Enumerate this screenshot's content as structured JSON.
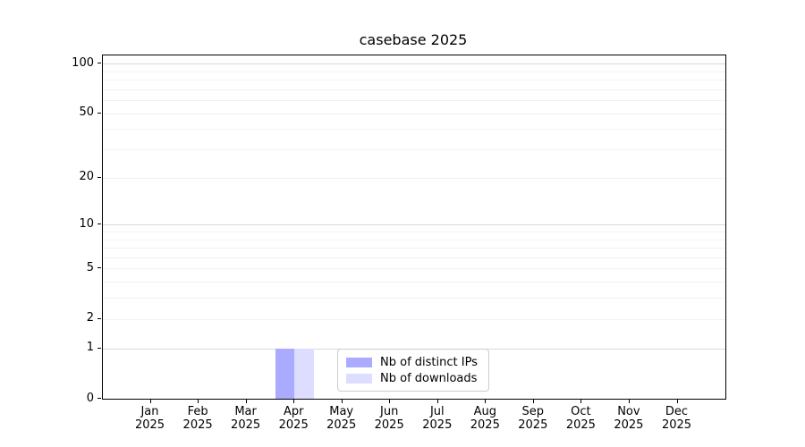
{
  "chart_data": {
    "type": "bar",
    "title": "casebase 2025",
    "x": {
      "months": [
        "Jan",
        "Feb",
        "Mar",
        "Apr",
        "May",
        "Jun",
        "Jul",
        "Aug",
        "Sep",
        "Oct",
        "Nov",
        "Dec"
      ],
      "year_label": "2025"
    },
    "series": [
      {
        "name": "Nb of distinct IPs",
        "color": "#aaaaff",
        "values": [
          0,
          0,
          0,
          1,
          0,
          0,
          0,
          0,
          0,
          0,
          0,
          0
        ]
      },
      {
        "name": "Nb of downloads",
        "color": "#ddddff",
        "values": [
          0,
          0,
          0,
          1,
          0,
          0,
          0,
          0,
          0,
          0,
          0,
          0
        ]
      }
    ],
    "y_axis": {
      "scale": "log1p",
      "tick_values": [
        100,
        50,
        20,
        10,
        5,
        2,
        1,
        0
      ],
      "max_value": 112
    },
    "grid": {
      "orientation": "horizontal",
      "major_values": [
        1,
        10,
        100
      ],
      "minor_values": [
        2,
        3,
        4,
        5,
        6,
        7,
        8,
        9,
        20,
        30,
        40,
        50,
        60,
        70,
        80,
        90
      ]
    },
    "legend": {
      "position": "lower-center-inside",
      "entries": [
        "Nb of distinct IPs",
        "Nb of downloads"
      ]
    },
    "colors": {
      "axis": "#000000",
      "grid_major": "#d9d9d9",
      "grid_minor": "#f2f2f2",
      "legend_border": "#cccccc",
      "background": "#ffffff"
    }
  }
}
